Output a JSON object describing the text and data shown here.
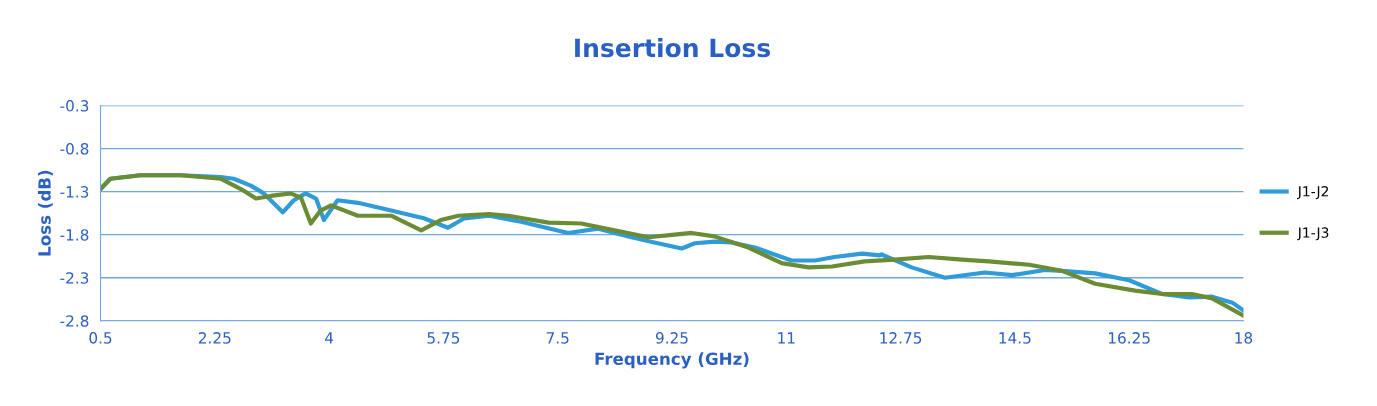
{
  "chart_data": {
    "type": "line",
    "title": "Insertion Loss",
    "xlabel": "Frequency (GHz)",
    "ylabel": "Loss (dB)",
    "xlim": [
      0.5,
      18
    ],
    "xticks": [
      0.5,
      2.25,
      4,
      5.75,
      7.5,
      9.25,
      11,
      12.75,
      14.5,
      16.25,
      18
    ],
    "ylim": [
      -2.8,
      -0.3
    ],
    "yticks": [
      -2.8,
      -2.3,
      -1.8,
      -1.3,
      -0.8,
      -0.3
    ],
    "grid": "y",
    "legend": "right",
    "marker": "none",
    "line_style": "solid",
    "series": [
      {
        "name": "J1-J2",
        "color": "#2f9bd8",
        "x": [
          0.5,
          0.65,
          1.11,
          1.73,
          2.34,
          2.54,
          2.8,
          3.0,
          3.29,
          3.46,
          3.64,
          3.8,
          3.92,
          4.13,
          4.44,
          4.95,
          5.45,
          5.82,
          6.07,
          6.45,
          6.94,
          7.66,
          8.12,
          8.63,
          8.98,
          9.4,
          9.6,
          9.9,
          10.16,
          10.52,
          11.08,
          11.44,
          11.74,
          12.16,
          12.43,
          12.46,
          12.92,
          13.43,
          14.04,
          14.46,
          14.96,
          15.22,
          15.73,
          16.25,
          16.76,
          17.17,
          17.52,
          17.83,
          18.0
        ],
        "values": [
          -1.27,
          -1.15,
          -1.11,
          -1.11,
          -1.13,
          -1.15,
          -1.23,
          -1.32,
          -1.54,
          -1.4,
          -1.32,
          -1.38,
          -1.63,
          -1.4,
          -1.43,
          -1.52,
          -1.61,
          -1.72,
          -1.61,
          -1.58,
          -1.65,
          -1.78,
          -1.73,
          -1.83,
          -1.89,
          -1.96,
          -1.9,
          -1.88,
          -1.89,
          -1.95,
          -2.1,
          -2.1,
          -2.06,
          -2.02,
          -2.04,
          -2.03,
          -2.18,
          -2.3,
          -2.24,
          -2.27,
          -2.21,
          -2.22,
          -2.25,
          -2.33,
          -2.49,
          -2.53,
          -2.52,
          -2.59,
          -2.68
        ]
      },
      {
        "name": "J1-J3",
        "color": "#6a8c34",
        "x": [
          0.5,
          0.65,
          1.11,
          1.73,
          2.34,
          2.39,
          2.65,
          2.88,
          3.11,
          3.41,
          3.57,
          3.72,
          3.87,
          4.03,
          4.44,
          4.95,
          5.41,
          5.71,
          5.98,
          6.45,
          6.74,
          7.36,
          7.86,
          8.37,
          8.89,
          9.29,
          9.55,
          9.9,
          10.42,
          10.93,
          11.34,
          11.7,
          12.2,
          12.66,
          13.18,
          13.69,
          14.1,
          14.72,
          15.22,
          15.73,
          16.34,
          16.76,
          17.21,
          17.52,
          18.0
        ],
        "values": [
          -1.27,
          -1.15,
          -1.11,
          -1.11,
          -1.15,
          -1.17,
          -1.27,
          -1.38,
          -1.35,
          -1.32,
          -1.37,
          -1.67,
          -1.52,
          -1.46,
          -1.58,
          -1.58,
          -1.75,
          -1.63,
          -1.58,
          -1.56,
          -1.58,
          -1.66,
          -1.67,
          -1.75,
          -1.83,
          -1.8,
          -1.78,
          -1.82,
          -1.95,
          -2.13,
          -2.18,
          -2.17,
          -2.11,
          -2.09,
          -2.06,
          -2.09,
          -2.11,
          -2.15,
          -2.22,
          -2.37,
          -2.45,
          -2.49,
          -2.49,
          -2.54,
          -2.74
        ]
      }
    ]
  }
}
